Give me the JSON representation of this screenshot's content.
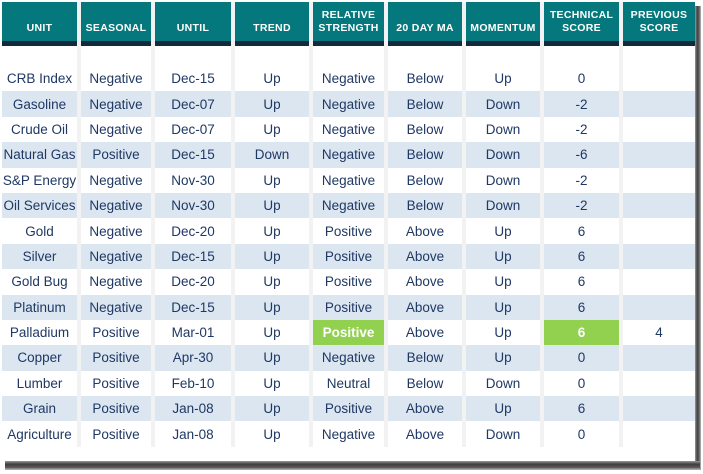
{
  "chart_data": {
    "type": "table",
    "columns": [
      "UNIT",
      "SEASONAL",
      "UNTIL",
      "TREND",
      "RELATIVE STRENGTH",
      "20 DAY MA",
      "MOMENTUM",
      "TECHNICAL SCORE",
      "PREVIOUS SCORE"
    ],
    "rows": [
      [
        "CRB Index",
        "Negative",
        "Dec-15",
        "Up",
        "Negative",
        "Below",
        "Up",
        "0",
        ""
      ],
      [
        "Gasoline",
        "Negative",
        "Dec-07",
        "Up",
        "Negative",
        "Below",
        "Down",
        "-2",
        ""
      ],
      [
        "Crude Oil",
        "Negative",
        "Dec-07",
        "Up",
        "Negative",
        "Below",
        "Down",
        "-2",
        ""
      ],
      [
        "Natural Gas",
        "Positive",
        "Dec-15",
        "Down",
        "Negative",
        "Below",
        "Down",
        "-6",
        ""
      ],
      [
        "S&P Energy",
        "Negative",
        "Nov-30",
        "Up",
        "Negative",
        "Below",
        "Down",
        "-2",
        ""
      ],
      [
        "Oil Services",
        "Negative",
        "Nov-30",
        "Up",
        "Negative",
        "Below",
        "Down",
        "-2",
        ""
      ],
      [
        "Gold",
        "Negative",
        "Dec-20",
        "Up",
        "Positive",
        "Above",
        "Up",
        "6",
        ""
      ],
      [
        "Silver",
        "Negative",
        "Dec-15",
        "Up",
        "Positive",
        "Above",
        "Up",
        "6",
        ""
      ],
      [
        "Gold Bug",
        "Negative",
        "Dec-20",
        "Up",
        "Positive",
        "Above",
        "Up",
        "6",
        ""
      ],
      [
        "Platinum",
        "Negative",
        "Dec-15",
        "Up",
        "Positive",
        "Above",
        "Up",
        "6",
        ""
      ],
      [
        "Palladium",
        "Positive",
        "Mar-01",
        "Up",
        "Positive",
        "Above",
        "Up",
        "6",
        "4"
      ],
      [
        "Copper",
        "Positive",
        "Apr-30",
        "Up",
        "Negative",
        "Below",
        "Up",
        "0",
        ""
      ],
      [
        "Lumber",
        "Positive",
        "Feb-10",
        "Up",
        "Neutral",
        "Below",
        "Down",
        "0",
        ""
      ],
      [
        "Grain",
        "Positive",
        "Jan-08",
        "Up",
        "Positive",
        "Above",
        "Up",
        "6",
        ""
      ],
      [
        "Agriculture",
        "Positive",
        "Jan-08",
        "Up",
        "Negative",
        "Above",
        "Down",
        "0",
        ""
      ]
    ],
    "highlighted_cells": [
      {
        "row": 10,
        "col": 4
      },
      {
        "row": 10,
        "col": 7
      }
    ],
    "layout_hints": {
      "striping": "alternating white and light blue rows",
      "legend_position": "none",
      "grid": "column gutters only"
    }
  },
  "colors": {
    "header_bg": "#04787C",
    "header_text": "#FFFFFF",
    "header_underline": "#14293C",
    "row_bg": "#FFFFFF",
    "row_alt_bg": "#DCE6F1",
    "text": "#1F3864",
    "highlight_bg": "#92D050",
    "highlight_text": "#FFFFFF"
  }
}
